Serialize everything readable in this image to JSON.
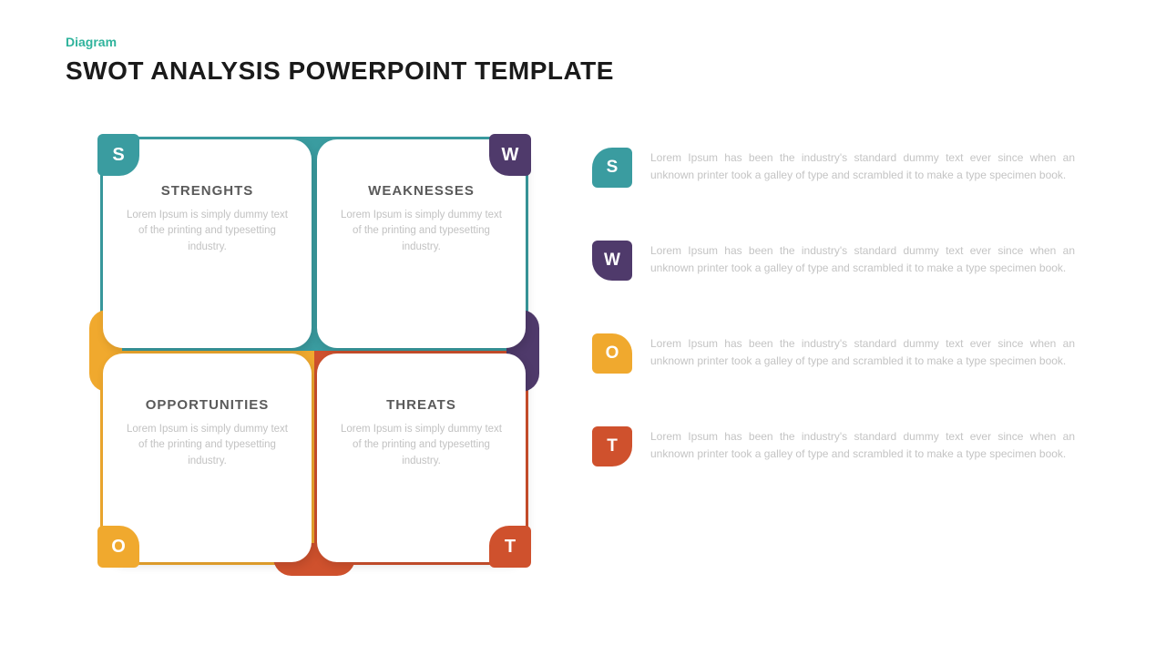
{
  "header": {
    "category": "Diagram",
    "category_color": "#2fb39c",
    "title": "SWOT ANALYSIS POWERPOINT TEMPLATE",
    "title_color": "#1a1a1a"
  },
  "colors": {
    "teal": "#3a9ca0",
    "purple": "#4f3a6b",
    "orange": "#f0a92e",
    "red": "#cf512d",
    "card_bg": "#ffffff",
    "text_muted": "#c2c2c2",
    "text_heading": "#5a5a5a"
  },
  "swot": {
    "cells": [
      {
        "letter": "S",
        "title": "STRENGHTS",
        "desc": "Lorem Ipsum is simply dummy text of the printing and typesetting industry.",
        "color_key": "teal",
        "badge_pos": "tl"
      },
      {
        "letter": "W",
        "title": "WEAKNESSES",
        "desc": "Lorem Ipsum is simply dummy text of the printing and typesetting industry.",
        "color_key": "purple",
        "badge_pos": "tr"
      },
      {
        "letter": "O",
        "title": "OPPORTUNITIES",
        "desc": "Lorem Ipsum is simply dummy text of the printing and typesetting industry.",
        "color_key": "orange",
        "badge_pos": "bl"
      },
      {
        "letter": "T",
        "title": "THREATS",
        "desc": "Lorem Ipsum is simply dummy text of the printing and typesetting industry.",
        "color_key": "red",
        "badge_pos": "br"
      }
    ],
    "bg_top_color_key": "teal",
    "bg_bot_left_color_key": "orange",
    "bg_bot_right_color_key": "red",
    "accent_left_color_key": "orange",
    "accent_right_color_key": "purple",
    "accent_bottom_color_key": "red"
  },
  "list": {
    "items": [
      {
        "letter": "S",
        "color_key": "teal",
        "text": "Lorem Ipsum has been the industry's standard dummy text ever since when an unknown printer took a galley of type and scrambled it to make a type specimen book."
      },
      {
        "letter": "W",
        "color_key": "purple",
        "text": "Lorem Ipsum has been the industry's standard dummy text ever since when an unknown printer took a galley of type and scrambled it to make a type specimen book."
      },
      {
        "letter": "O",
        "color_key": "orange",
        "text": "Lorem Ipsum has been the industry's standard dummy text ever since when an unknown printer took a galley of type and scrambled it to make a type specimen book."
      },
      {
        "letter": "T",
        "color_key": "red",
        "text": "Lorem Ipsum has been the industry's standard dummy text ever since when an unknown printer took a galley of type and scrambled it to make a type specimen book."
      }
    ]
  }
}
